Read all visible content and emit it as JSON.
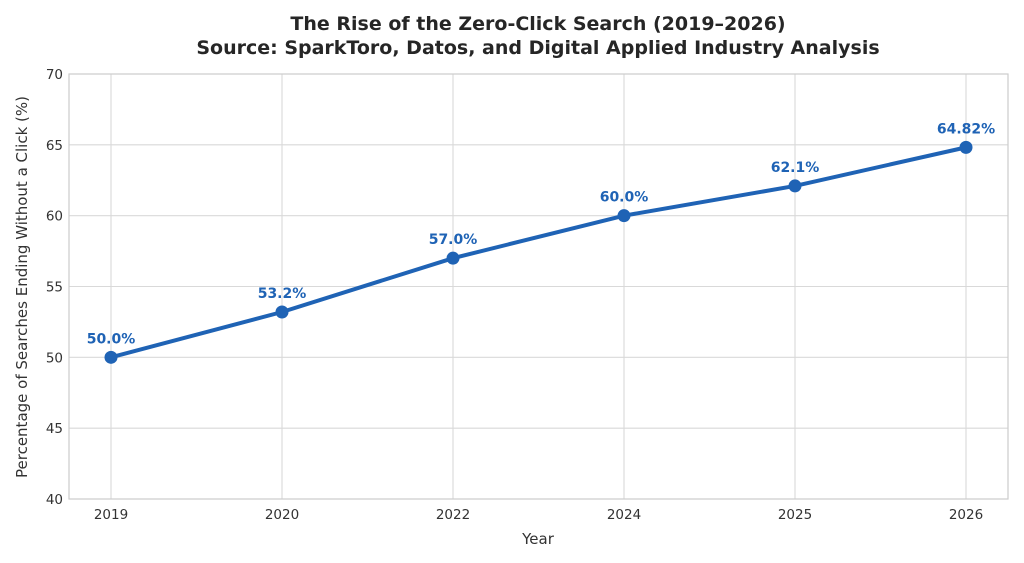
{
  "chart_data": {
    "type": "line",
    "title": "The Rise of the Zero-Click Search (2019–2026)",
    "subtitle": "Source: SparkToro, Datos, and Digital Applied Industry Analysis",
    "xlabel": "Year",
    "ylabel": "Percentage of Searches Ending Without a Click (%)",
    "categories": [
      "2019",
      "2020",
      "2022",
      "2024",
      "2025",
      "2026"
    ],
    "series": [
      {
        "values": [
          50.0,
          53.2,
          57.0,
          60.0,
          62.1,
          64.82
        ],
        "data_labels": [
          "50.0%",
          "53.2%",
          "57.0%",
          "60.0%",
          "62.1%",
          "64.82%"
        ],
        "color": "#1f63b5"
      }
    ],
    "ylim": [
      40,
      70
    ],
    "yticks": [
      40,
      45,
      50,
      55,
      60,
      65,
      70
    ],
    "grid": true,
    "legend": "none"
  }
}
